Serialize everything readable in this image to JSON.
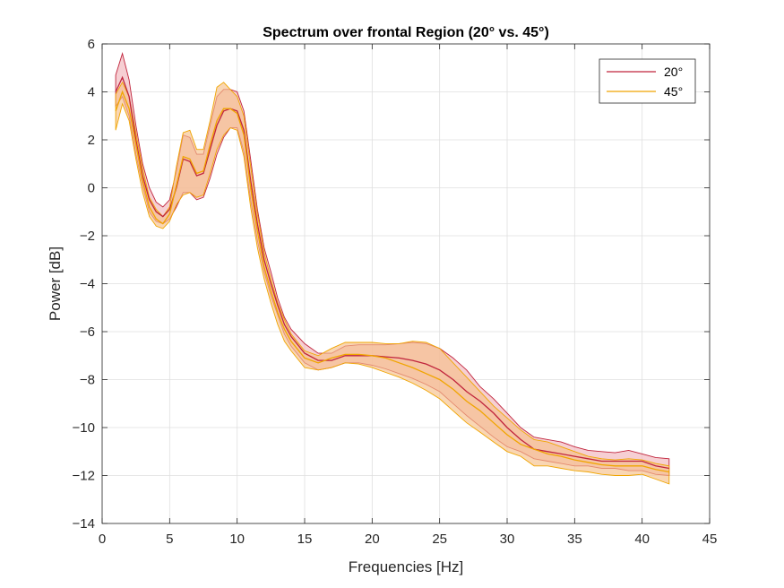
{
  "chart_data": {
    "type": "area",
    "title": "Spectrum over frontal Region (20° vs. 45°)",
    "xlabel": "Frequencies [Hz]",
    "ylabel": "Power [dB]",
    "xlim": [
      0,
      45
    ],
    "ylim": [
      -14,
      6
    ],
    "xticks": [
      0,
      5,
      10,
      15,
      20,
      25,
      30,
      35,
      40,
      45
    ],
    "yticks": [
      -14,
      -12,
      -10,
      -8,
      -6,
      -4,
      -2,
      0,
      2,
      4,
      6
    ],
    "grid": true,
    "legend_position": "top-right",
    "series": [
      {
        "name": "20°",
        "color": "#C0243C",
        "fill": "#F1B6BB",
        "x": [
          1,
          1.5,
          2,
          2.5,
          3,
          3.5,
          4,
          4.5,
          5,
          5.5,
          6,
          6.5,
          7,
          7.5,
          8,
          8.5,
          9,
          9.5,
          10,
          10.5,
          11,
          11.5,
          12,
          12.5,
          13,
          13.5,
          14,
          15,
          16,
          17,
          18,
          19,
          20,
          21,
          22,
          23,
          24,
          25,
          26,
          27,
          28,
          29,
          30,
          31,
          32,
          33,
          34,
          35,
          36,
          37,
          38,
          39,
          40,
          41,
          42
        ],
        "mean": [
          4.0,
          4.6,
          3.8,
          2.0,
          0.5,
          -0.5,
          -1.0,
          -1.2,
          -0.9,
          0.0,
          1.2,
          1.1,
          0.5,
          0.6,
          1.6,
          2.6,
          3.2,
          3.3,
          3.2,
          2.4,
          0.3,
          -1.5,
          -3.0,
          -4.0,
          -4.9,
          -5.7,
          -6.2,
          -6.9,
          -7.2,
          -7.2,
          -7.0,
          -7.0,
          -7.0,
          -7.05,
          -7.1,
          -7.2,
          -7.35,
          -7.6,
          -8.0,
          -8.5,
          -8.9,
          -9.4,
          -10.0,
          -10.5,
          -10.9,
          -11.0,
          -11.1,
          -11.2,
          -11.3,
          -11.4,
          -11.4,
          -11.4,
          -11.4,
          -11.6,
          -11.7
        ],
        "lower": [
          3.4,
          3.8,
          3.0,
          1.4,
          0.1,
          -1.0,
          -1.4,
          -1.5,
          -1.3,
          -0.8,
          -0.2,
          -0.2,
          -0.5,
          -0.4,
          0.4,
          1.4,
          2.1,
          2.5,
          2.5,
          1.5,
          -0.5,
          -2.2,
          -3.5,
          -4.5,
          -5.3,
          -6.1,
          -6.6,
          -7.3,
          -7.6,
          -7.5,
          -7.3,
          -7.3,
          -7.4,
          -7.55,
          -7.75,
          -7.95,
          -8.2,
          -8.5,
          -9.0,
          -9.5,
          -9.95,
          -10.4,
          -10.8,
          -11.0,
          -11.3,
          -11.4,
          -11.5,
          -11.6,
          -11.6,
          -11.7,
          -11.7,
          -11.8,
          -11.8,
          -11.95,
          -12.0
        ],
        "upper": [
          4.7,
          5.6,
          4.5,
          2.6,
          1.0,
          0.0,
          -0.6,
          -0.8,
          -0.5,
          0.7,
          2.2,
          2.1,
          1.4,
          1.4,
          2.6,
          3.8,
          4.1,
          4.1,
          4.0,
          3.2,
          1.2,
          -0.9,
          -2.5,
          -3.5,
          -4.6,
          -5.4,
          -5.9,
          -6.5,
          -6.9,
          -6.9,
          -6.6,
          -6.55,
          -6.55,
          -6.55,
          -6.5,
          -6.45,
          -6.5,
          -6.7,
          -7.1,
          -7.6,
          -8.3,
          -8.8,
          -9.4,
          -10.0,
          -10.4,
          -10.5,
          -10.6,
          -10.8,
          -10.95,
          -11.0,
          -11.05,
          -10.95,
          -11.1,
          -11.25,
          -11.3
        ]
      },
      {
        "name": "45°",
        "color": "#F0A500",
        "fill": "#F6C08A",
        "x": [
          1,
          1.5,
          2,
          2.5,
          3,
          3.5,
          4,
          4.5,
          5,
          5.5,
          6,
          6.5,
          7,
          7.5,
          8,
          8.5,
          9,
          9.5,
          10,
          10.5,
          11,
          11.5,
          12,
          12.5,
          13,
          13.5,
          14,
          15,
          16,
          17,
          18,
          19,
          20,
          21,
          22,
          23,
          24,
          25,
          26,
          27,
          28,
          29,
          30,
          31,
          32,
          33,
          34,
          35,
          36,
          37,
          38,
          39,
          40,
          41,
          42
        ],
        "mean": [
          3.2,
          4.0,
          3.3,
          1.8,
          0.3,
          -0.8,
          -1.3,
          -1.5,
          -1.1,
          0.1,
          1.3,
          1.2,
          0.6,
          0.7,
          1.8,
          2.8,
          3.3,
          3.3,
          3.1,
          2.2,
          0.0,
          -1.8,
          -3.3,
          -4.3,
          -5.2,
          -5.9,
          -6.4,
          -7.1,
          -7.3,
          -7.1,
          -6.95,
          -6.95,
          -7.0,
          -7.1,
          -7.3,
          -7.5,
          -7.75,
          -8.0,
          -8.4,
          -8.9,
          -9.3,
          -9.8,
          -10.3,
          -10.7,
          -10.9,
          -11.1,
          -11.2,
          -11.35,
          -11.45,
          -11.55,
          -11.6,
          -11.6,
          -11.6,
          -11.75,
          -11.85
        ],
        "lower": [
          2.4,
          3.5,
          2.8,
          1.2,
          -0.2,
          -1.2,
          -1.6,
          -1.7,
          -1.4,
          -0.7,
          -0.3,
          -0.2,
          -0.4,
          -0.3,
          0.6,
          1.6,
          2.2,
          2.5,
          2.4,
          1.3,
          -0.8,
          -2.5,
          -3.8,
          -4.8,
          -5.7,
          -6.4,
          -6.8,
          -7.5,
          -7.6,
          -7.5,
          -7.3,
          -7.35,
          -7.5,
          -7.7,
          -7.9,
          -8.15,
          -8.45,
          -8.8,
          -9.3,
          -9.8,
          -10.2,
          -10.6,
          -11.0,
          -11.2,
          -11.6,
          -11.6,
          -11.7,
          -11.8,
          -11.85,
          -11.95,
          -12.0,
          -12.0,
          -11.95,
          -12.15,
          -12.35
        ],
        "upper": [
          3.9,
          4.4,
          3.8,
          2.3,
          0.8,
          -0.4,
          -0.9,
          -1.2,
          -0.8,
          0.9,
          2.3,
          2.4,
          1.6,
          1.6,
          2.8,
          4.2,
          4.4,
          4.1,
          3.8,
          3.0,
          0.9,
          -1.1,
          -2.7,
          -3.8,
          -4.8,
          -5.5,
          -6.1,
          -6.8,
          -7.0,
          -6.7,
          -6.45,
          -6.45,
          -6.45,
          -6.5,
          -6.5,
          -6.4,
          -6.45,
          -6.7,
          -7.3,
          -7.9,
          -8.5,
          -9.1,
          -9.6,
          -10.1,
          -10.5,
          -10.6,
          -10.8,
          -11.0,
          -11.2,
          -11.3,
          -11.35,
          -11.3,
          -11.35,
          -11.5,
          -11.6
        ]
      }
    ]
  }
}
